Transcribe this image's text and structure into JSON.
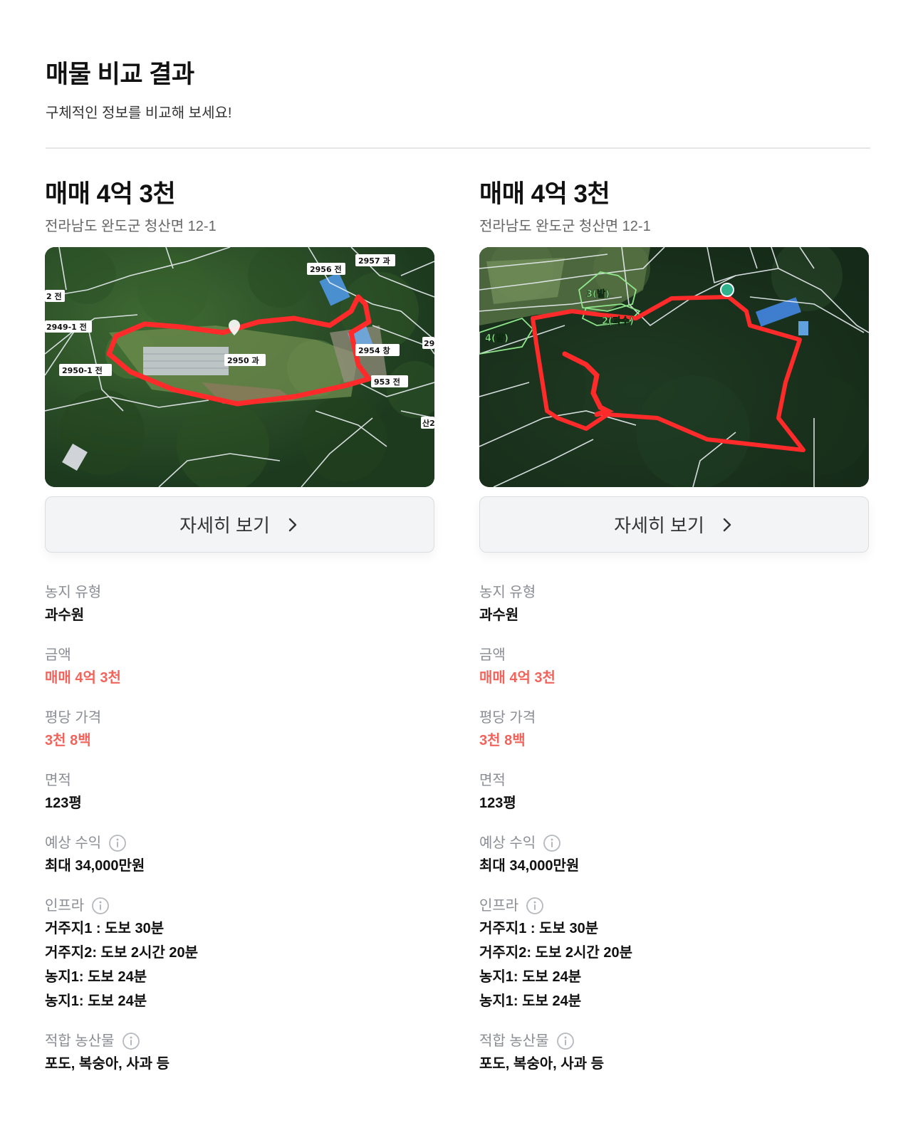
{
  "header": {
    "title": "매물 비교 결과",
    "subtitle": "구체적인 정보를 비교해 보세요!"
  },
  "colors": {
    "accent_red": "#f2645b",
    "label_gray": "#8a8d93",
    "parcel_outline": "#ff2a2a"
  },
  "listings": [
    {
      "price_title": "매매 4억 3천",
      "address": "전라남도 완도군 청산면 12-1",
      "map_labels": [
        "2956 전",
        "2957 과",
        "2 전",
        "2949-1 전",
        "2950 과",
        "2954 창",
        "29",
        "2950-1 전",
        "953 전",
        "산2"
      ],
      "detail_button": "자세히 보기",
      "fields": {
        "farm_type_label": "농지 유형",
        "farm_type": "과수원",
        "amount_label": "금액",
        "amount": "매매 4억 3천",
        "price_per_pyeong_label": "평당 가격",
        "price_per_pyeong": "3천 8백",
        "area_label": "면적",
        "area": "123평",
        "expected_income_label": "예상 수익",
        "expected_income": "최대 34,000만원",
        "infra_label": "인프라",
        "infra": [
          "거주지1 : 도보 30분",
          "거주지2: 도보 2시간 20분",
          "농지1: 도보 24분",
          "농지1: 도보 24분"
        ],
        "crops_label": "적합 농산물",
        "crops": "포도, 복숭아, 사과 등"
      }
    },
    {
      "price_title": "매매 4억 3천",
      "address": "전라남도 완도군 청산면 12-1",
      "map_labels": [
        "3(밭)",
        "2(과수)",
        "4(밭)"
      ],
      "detail_button": "자세히 보기",
      "fields": {
        "farm_type_label": "농지 유형",
        "farm_type": "과수원",
        "amount_label": "금액",
        "amount": "매매 4억 3천",
        "price_per_pyeong_label": "평당 가격",
        "price_per_pyeong": "3천 8백",
        "area_label": "면적",
        "area": "123평",
        "expected_income_label": "예상 수익",
        "expected_income": "최대 34,000만원",
        "infra_label": "인프라",
        "infra": [
          "거주지1 : 도보 30분",
          "거주지2: 도보 2시간 20분",
          "농지1: 도보 24분",
          "농지1: 도보 24분"
        ],
        "crops_label": "적합 농산물",
        "crops": "포도, 복숭아, 사과 등"
      }
    }
  ]
}
